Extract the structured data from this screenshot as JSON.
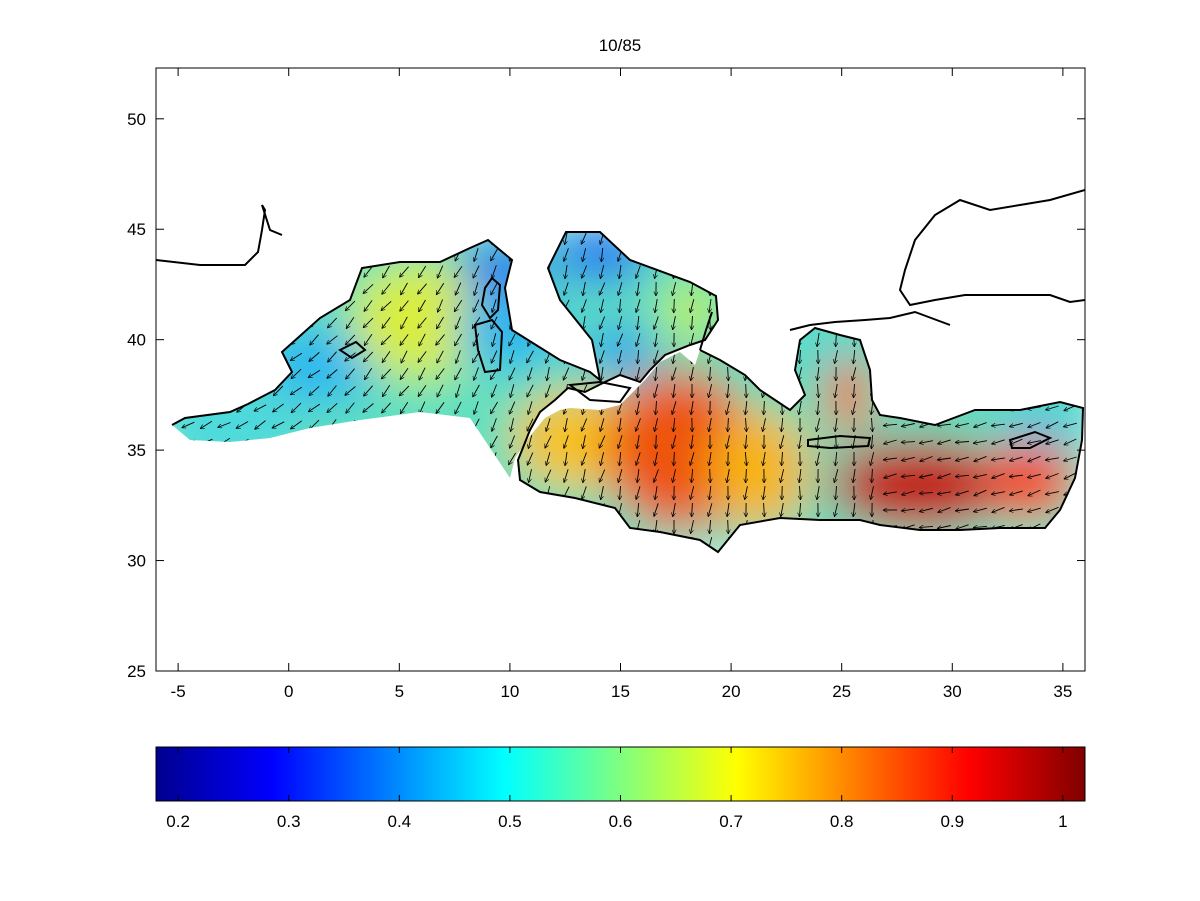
{
  "title": "10/85",
  "map": {
    "x_ticks": [
      -5,
      0,
      5,
      10,
      15,
      20,
      25,
      30,
      35
    ],
    "y_ticks": [
      25,
      30,
      35,
      40,
      45,
      50
    ],
    "xlim": [
      -6,
      36
    ],
    "ylim": [
      25,
      52.3
    ]
  },
  "colorbar": {
    "ticks": [
      "0.2",
      "0.3",
      "0.4",
      "0.5",
      "0.6",
      "0.7",
      "0.8",
      "0.9",
      "1"
    ],
    "range": [
      0.18,
      1.02
    ],
    "colormap": "jet"
  },
  "colors": {
    "land_outline": "#000000",
    "background": "#ffffff"
  }
}
